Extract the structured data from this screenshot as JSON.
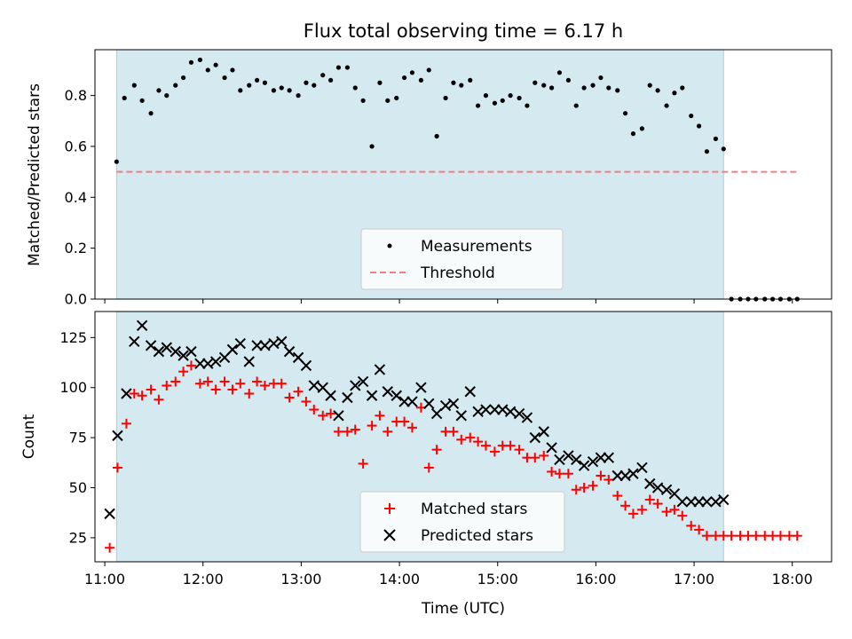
{
  "chart_data": {
    "title": "Flux total observing time = 6.17 h",
    "xlabel": "Time (UTC)",
    "x_ticks": [
      "11:00",
      "12:00",
      "13:00",
      "14:00",
      "15:00",
      "16:00",
      "17:00",
      "18:00"
    ],
    "xlim_hours": [
      10.9,
      18.4
    ],
    "shaded_interval_hours": [
      11.12,
      17.3
    ],
    "shade_color": "#d4e9f0",
    "panels": [
      {
        "type": "scatter",
        "ylabel": "Matched/Predicted stars",
        "ylim": [
          0,
          0.98
        ],
        "y_ticks": [
          "0.0",
          "0.2",
          "0.4",
          "0.6",
          "0.8"
        ],
        "legend_placement": "lower-center",
        "series": [
          {
            "name": "Measurements",
            "marker": "dot",
            "color": "#000000",
            "x": [
              11.12,
              11.2,
              11.3,
              11.38,
              11.47,
              11.55,
              11.63,
              11.72,
              11.8,
              11.88,
              11.97,
              12.05,
              12.13,
              12.22,
              12.3,
              12.38,
              12.47,
              12.55,
              12.63,
              12.72,
              12.8,
              12.88,
              12.97,
              13.05,
              13.13,
              13.22,
              13.3,
              13.38,
              13.47,
              13.55,
              13.63,
              13.72,
              13.8,
              13.88,
              13.97,
              14.05,
              14.13,
              14.22,
              14.3,
              14.38,
              14.47,
              14.55,
              14.63,
              14.72,
              14.8,
              14.88,
              14.97,
              15.05,
              15.13,
              15.22,
              15.3,
              15.38,
              15.47,
              15.55,
              15.63,
              15.72,
              15.8,
              15.88,
              15.97,
              16.05,
              16.13,
              16.22,
              16.3,
              16.38,
              16.47,
              16.55,
              16.63,
              16.72,
              16.8,
              16.88,
              16.97,
              17.05,
              17.13,
              17.22,
              17.3,
              17.38,
              17.47,
              17.55,
              17.63,
              17.72,
              17.8,
              17.88,
              17.97,
              18.05
            ],
            "y": [
              0.54,
              0.79,
              0.84,
              0.78,
              0.73,
              0.82,
              0.8,
              0.84,
              0.87,
              0.93,
              0.94,
              0.9,
              0.92,
              0.87,
              0.9,
              0.82,
              0.84,
              0.86,
              0.85,
              0.82,
              0.83,
              0.82,
              0.8,
              0.85,
              0.84,
              0.88,
              0.86,
              0.91,
              0.91,
              0.83,
              0.78,
              0.6,
              0.85,
              0.78,
              0.79,
              0.87,
              0.89,
              0.86,
              0.9,
              0.64,
              0.79,
              0.85,
              0.84,
              0.86,
              0.76,
              0.8,
              0.77,
              0.78,
              0.8,
              0.79,
              0.76,
              0.85,
              0.84,
              0.83,
              0.89,
              0.86,
              0.76,
              0.83,
              0.84,
              0.87,
              0.83,
              0.82,
              0.73,
              0.65,
              0.67,
              0.84,
              0.82,
              0.76,
              0.81,
              0.83,
              0.72,
              0.68,
              0.58,
              0.63,
              0.59,
              0,
              0,
              0,
              0,
              0,
              0,
              0,
              0,
              0
            ]
          },
          {
            "name": "Threshold",
            "marker": "dashed-line",
            "color": "#f08080",
            "x": [
              11.12,
              18.05
            ],
            "y": [
              0.5,
              0.5
            ]
          }
        ]
      },
      {
        "type": "scatter",
        "ylabel": "Count",
        "ylim": [
          13,
          138
        ],
        "y_ticks": [
          "25",
          "50",
          "75",
          "100",
          "125"
        ],
        "legend_placement": "lower-center",
        "series": [
          {
            "name": "Matched stars",
            "marker": "plus",
            "color": "#ff0000",
            "x": [
              11.05,
              11.13,
              11.22,
              11.3,
              11.38,
              11.47,
              11.55,
              11.63,
              11.72,
              11.8,
              11.88,
              11.97,
              12.05,
              12.13,
              12.22,
              12.3,
              12.38,
              12.47,
              12.55,
              12.63,
              12.72,
              12.8,
              12.88,
              12.97,
              13.05,
              13.13,
              13.22,
              13.3,
              13.38,
              13.47,
              13.55,
              13.63,
              13.72,
              13.8,
              13.88,
              13.97,
              14.05,
              14.13,
              14.22,
              14.3,
              14.38,
              14.47,
              14.55,
              14.63,
              14.72,
              14.8,
              14.88,
              14.97,
              15.05,
              15.13,
              15.22,
              15.3,
              15.38,
              15.47,
              15.55,
              15.63,
              15.72,
              15.8,
              15.88,
              15.97,
              16.05,
              16.13,
              16.22,
              16.3,
              16.38,
              16.47,
              16.55,
              16.63,
              16.72,
              16.8,
              16.88,
              16.97,
              17.05,
              17.13,
              17.22,
              17.3,
              17.38,
              17.47,
              17.55,
              17.63,
              17.72,
              17.8,
              17.88,
              17.97,
              18.05
            ],
            "y": [
              20,
              60,
              82,
              97,
              96,
              99,
              94,
              101,
              103,
              108,
              111,
              102,
              103,
              99,
              103,
              99,
              102,
              97,
              103,
              101,
              102,
              102,
              95,
              98,
              93,
              89,
              86,
              87,
              78,
              78,
              79,
              62,
              81,
              86,
              78,
              83,
              83,
              80,
              90,
              60,
              69,
              78,
              78,
              74,
              75,
              73,
              71,
              68,
              71,
              71,
              69,
              65,
              65,
              66,
              58,
              57,
              57,
              49,
              50,
              51,
              56,
              54,
              46,
              41,
              37,
              39,
              44,
              42,
              38,
              39,
              36,
              31,
              29,
              26,
              26,
              26,
              26,
              26,
              26,
              26,
              26,
              26,
              26,
              26,
              26
            ]
          },
          {
            "name": "Predicted stars",
            "marker": "x",
            "color": "#000000",
            "x": [
              11.05,
              11.13,
              11.22,
              11.3,
              11.38,
              11.47,
              11.55,
              11.63,
              11.72,
              11.8,
              11.88,
              11.97,
              12.05,
              12.13,
              12.22,
              12.3,
              12.38,
              12.47,
              12.55,
              12.63,
              12.72,
              12.8,
              12.88,
              12.97,
              13.05,
              13.13,
              13.22,
              13.3,
              13.38,
              13.47,
              13.55,
              13.63,
              13.72,
              13.8,
              13.88,
              13.97,
              14.05,
              14.13,
              14.22,
              14.3,
              14.38,
              14.47,
              14.55,
              14.63,
              14.72,
              14.8,
              14.88,
              14.97,
              15.05,
              15.13,
              15.22,
              15.3,
              15.38,
              15.47,
              15.55,
              15.63,
              15.72,
              15.8,
              15.88,
              15.97,
              16.05,
              16.13,
              16.22,
              16.3,
              16.38,
              16.47,
              16.55,
              16.63,
              16.72,
              16.8,
              16.88,
              16.97,
              17.05,
              17.13,
              17.22,
              17.3
            ],
            "y": [
              37,
              76,
              97,
              123,
              131,
              121,
              118,
              120,
              118,
              116,
              118,
              112,
              112,
              113,
              115,
              119,
              122,
              113,
              121,
              121,
              122,
              123,
              118,
              115,
              111,
              101,
              100,
              96,
              86,
              95,
              101,
              103,
              96,
              109,
              98,
              96,
              93,
              93,
              100,
              92,
              87,
              91,
              92,
              86,
              98,
              88,
              89,
              89,
              89,
              88,
              87,
              85,
              75,
              78,
              70,
              64,
              66,
              64,
              61,
              63,
              65,
              65,
              56,
              56,
              57,
              60,
              52,
              50,
              49,
              47,
              43,
              43,
              43,
              43,
              43,
              44
            ]
          }
        ]
      }
    ]
  }
}
